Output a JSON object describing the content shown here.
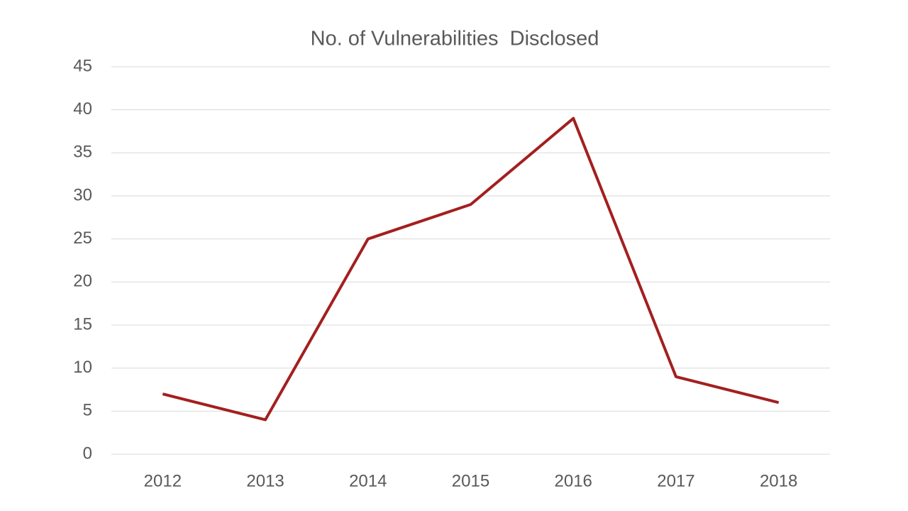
{
  "chart_data": {
    "type": "line",
    "title": "No. of Vulnerabilities  Disclosed",
    "categories": [
      "2012",
      "2013",
      "2014",
      "2015",
      "2016",
      "2017",
      "2018"
    ],
    "values": [
      7,
      4,
      25,
      29,
      39,
      9,
      6
    ],
    "color": "#a31f1f",
    "ylim": [
      0,
      45
    ],
    "yticks": [
      0,
      5,
      10,
      15,
      20,
      25,
      30,
      35,
      40,
      45
    ],
    "grid": true
  }
}
